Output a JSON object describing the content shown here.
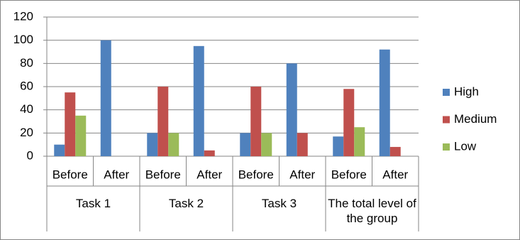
{
  "chart_data": {
    "type": "bar",
    "groups": [
      {
        "name": "Task 1",
        "categories": [
          "Before",
          "After"
        ]
      },
      {
        "name": "Task 2",
        "categories": [
          "Before",
          "After"
        ]
      },
      {
        "name": "Task 3",
        "categories": [
          "Before",
          "After"
        ]
      },
      {
        "name": "The total level of the group",
        "categories": [
          "Before",
          "After"
        ]
      }
    ],
    "series": [
      {
        "name": "High",
        "color": "#4f81bd",
        "values": [
          10,
          100,
          20,
          95,
          20,
          80,
          17,
          92
        ]
      },
      {
        "name": "Medium",
        "color": "#c0504d",
        "values": [
          55,
          0,
          60,
          5,
          60,
          20,
          58,
          8
        ]
      },
      {
        "name": "Low",
        "color": "#9bbb59",
        "values": [
          35,
          0,
          20,
          0,
          20,
          0,
          25,
          0
        ]
      }
    ],
    "ylim": [
      0,
      120
    ],
    "yticks": [
      0,
      20,
      40,
      60,
      80,
      100,
      120
    ],
    "grid": true,
    "legend": "right"
  }
}
